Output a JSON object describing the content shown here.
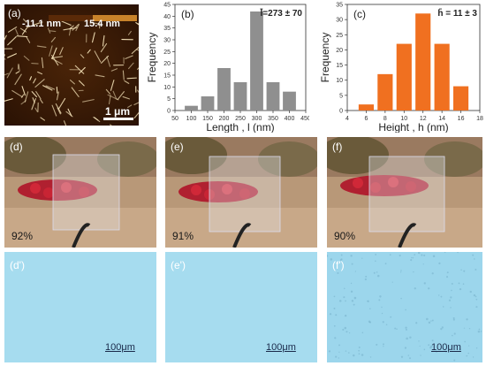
{
  "figure": {
    "panel_a": {
      "label": "(a)",
      "height_scale_min": "-11.1 nm",
      "height_scale_max": "15.4 nm",
      "scale_bar": "1 μm"
    },
    "transmittance": [
      {
        "label": "(d)",
        "value": "92%"
      },
      {
        "label": "(e)",
        "value": "91%"
      },
      {
        "label": "(f)",
        "value": "90%"
      }
    ],
    "micrographs": [
      {
        "label": "(d')",
        "scale_bar": "100μm"
      },
      {
        "label": "(e')",
        "scale_bar": "100μm"
      },
      {
        "label": "(f')",
        "scale_bar": "100μm"
      }
    ]
  },
  "chart_data": [
    {
      "type": "bar",
      "panel_label": "(b)",
      "annotation": "l̄=273 ± 70",
      "xlabel": "Length , l (nm)",
      "ylabel": "Frequency",
      "x_ticks": [
        50,
        100,
        150,
        200,
        250,
        300,
        350,
        400,
        450
      ],
      "y_ticks": [
        0,
        5,
        10,
        15,
        20,
        25,
        30,
        35,
        40,
        45
      ],
      "xlim": [
        50,
        450
      ],
      "ylim": [
        0,
        45
      ],
      "categories": [
        100,
        150,
        200,
        250,
        300,
        350,
        400
      ],
      "values": [
        2,
        6,
        18,
        12,
        42,
        12,
        8
      ],
      "color": "#8f8f8f"
    },
    {
      "type": "bar",
      "panel_label": "(c)",
      "annotation": "h̄ = 11 ± 3",
      "xlabel": "Height , h (nm)",
      "ylabel": "Frequency",
      "x_ticks": [
        4,
        6,
        8,
        10,
        12,
        14,
        16,
        18
      ],
      "y_ticks": [
        0,
        5,
        10,
        15,
        20,
        25,
        30,
        35
      ],
      "xlim": [
        4,
        18
      ],
      "ylim": [
        0,
        35
      ],
      "categories": [
        6,
        8,
        10,
        12,
        14,
        16
      ],
      "values": [
        2,
        12,
        22,
        32,
        22,
        8
      ],
      "color": "#f07020"
    }
  ]
}
